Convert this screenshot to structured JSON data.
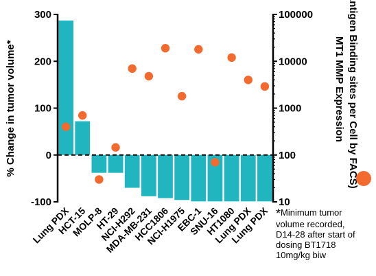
{
  "chart_data": {
    "type": "bar",
    "categories": [
      "Lung PDX",
      "HCT-15",
      "MOLP-8",
      "HT-29",
      "NCI-H292",
      "MDA-MB-231",
      "HCC1806",
      "NCI-H1975",
      "EBC-1",
      "SNU-16",
      "HT1080",
      "Lung PDX",
      "Lung PDX"
    ],
    "series": [
      {
        "axis": "left",
        "mark": "bar",
        "color": "#20b5bf",
        "values": [
          287,
          72,
          -38,
          -38,
          -70,
          -88,
          -92,
          -96,
          -99,
          -99,
          -99,
          -99,
          -99
        ]
      },
      {
        "axis": "right",
        "mark": "point",
        "color": "#f26a2e",
        "values": [
          400,
          700,
          30,
          145,
          7000,
          4800,
          19000,
          1800,
          18000,
          70,
          12000,
          4000,
          2900
        ]
      }
    ],
    "ylabel": "% Change in tumor volume*",
    "ylim": [
      -100,
      300
    ],
    "yticks": [
      "300",
      "200",
      "100",
      "0",
      "-100"
    ],
    "y2label_line1": "MT1 MMP Expression",
    "y2label_line2": "(Antigen Binding sites per Cell by FACS)",
    "y2scale": "log",
    "y2lim": [
      10,
      100000
    ],
    "y2ticks": [
      "100000",
      "10000",
      "1000",
      "100",
      "10"
    ],
    "footnote_star": "*",
    "footnote_lines": [
      "Minimum tumor",
      "volume recorded,",
      "D14-28 after start of",
      "dosing BT1718",
      "10mg/kg biw"
    ]
  }
}
